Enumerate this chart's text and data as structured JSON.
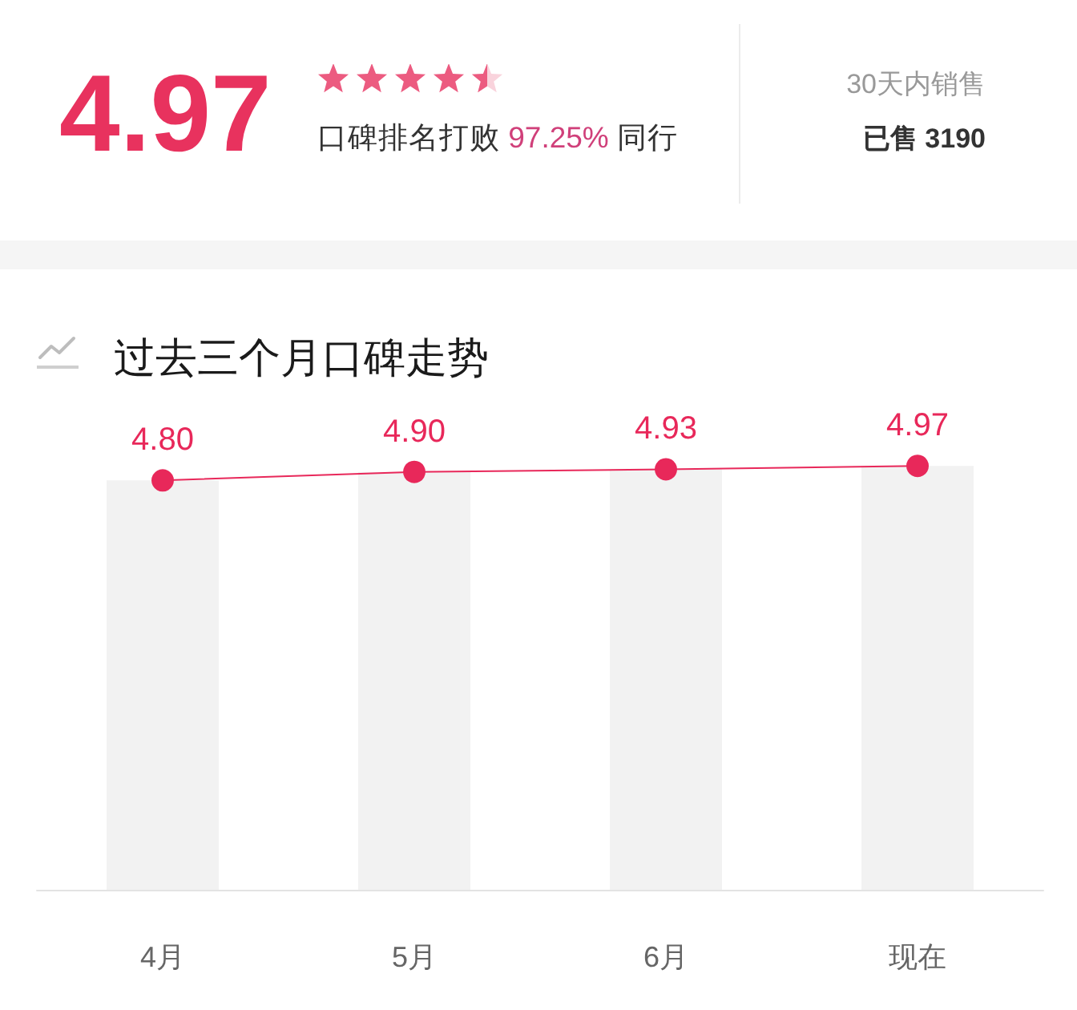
{
  "chart_data": [
    {
      "type": "other",
      "annotations": [
        "4.97",
        "口碑排名打败 97.25% 同行",
        "30天内销售",
        "已售 3190"
      ]
    },
    {
      "type": "line",
      "title": "过去三个月口碑走势",
      "categories": [
        "4月",
        "5月",
        "6月",
        "现在"
      ],
      "tick_labels": "x",
      "marker": "circle",
      "series": [
        {
          "type": "bar",
          "color": "#f2f2f2",
          "values": [
            4.8,
            4.9,
            4.93,
            4.97
          ]
        },
        {
          "type": "line",
          "color": "#e8285a",
          "values": [
            4.8,
            4.9,
            4.93,
            4.97
          ],
          "value_labels": [
            "4.80",
            "4.90",
            "4.93",
            "4.97"
          ]
        }
      ]
    }
  ]
}
